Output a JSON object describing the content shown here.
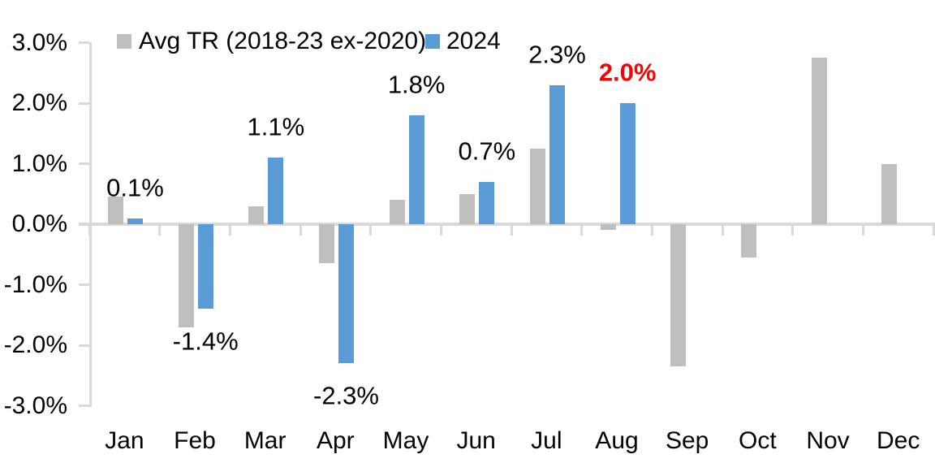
{
  "chart_data": {
    "type": "bar",
    "title": "",
    "xlabel": "",
    "ylabel": "",
    "categories": [
      "Jan",
      "Feb",
      "Mar",
      "Apr",
      "May",
      "Jun",
      "Jul",
      "Aug",
      "Sep",
      "Oct",
      "Nov",
      "Dec"
    ],
    "series": [
      {
        "name": "Avg TR (2018-23 ex-2020)",
        "color": "#BFBFBF",
        "values": [
          0.45,
          -1.7,
          0.3,
          -0.65,
          0.4,
          0.5,
          1.25,
          -0.1,
          -2.35,
          -0.55,
          2.75,
          1.0
        ],
        "data_labels": [
          null,
          null,
          null,
          null,
          null,
          null,
          null,
          null,
          null,
          null,
          null,
          null
        ]
      },
      {
        "name": "2024",
        "color": "#5B9BD5",
        "values": [
          0.1,
          -1.4,
          1.1,
          -2.3,
          1.8,
          0.7,
          2.3,
          2.0,
          null,
          null,
          null,
          null
        ],
        "data_labels": [
          {
            "text": "0.1%",
            "color": "#000000",
            "bold": false
          },
          {
            "text": "-1.4%",
            "color": "#000000",
            "bold": false
          },
          {
            "text": "1.1%",
            "color": "#000000",
            "bold": false
          },
          {
            "text": "-2.3%",
            "color": "#000000",
            "bold": false
          },
          {
            "text": "1.8%",
            "color": "#000000",
            "bold": false
          },
          {
            "text": "0.7%",
            "color": "#000000",
            "bold": false
          },
          {
            "text": "2.3%",
            "color": "#000000",
            "bold": false
          },
          {
            "text": "2.0%",
            "color": "#FF0000",
            "bold": true
          },
          null,
          null,
          null,
          null
        ]
      }
    ],
    "y_axis": {
      "tick_labels": [
        "3.0%",
        "2.0%",
        "1.0%",
        "0.0%",
        "-1.0%",
        "-2.0%",
        "-3.0%"
      ],
      "tick_values": [
        3,
        2,
        1,
        0,
        -1,
        -2,
        -3
      ],
      "min": -3,
      "max": 3
    },
    "gridlines": false,
    "legend_position": "top",
    "colors": {
      "axis": "#D9D9D9",
      "text": "#000000",
      "highlight": "#FF0000"
    }
  }
}
